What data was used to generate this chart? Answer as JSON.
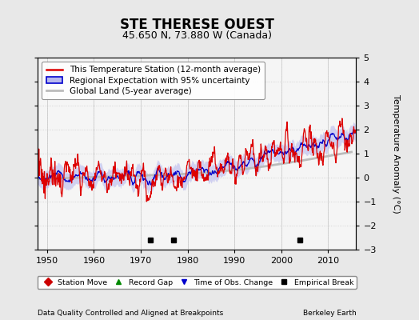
{
  "title": "STE THERESE OUEST",
  "subtitle": "45.650 N, 73.880 W (Canada)",
  "ylabel": "Temperature Anomaly (°C)",
  "xlabel_left": "Data Quality Controlled and Aligned at Breakpoints",
  "xlabel_right": "Berkeley Earth",
  "ylim": [
    -3,
    5
  ],
  "xlim": [
    1948,
    2016
  ],
  "yticks": [
    -3,
    -2,
    -1,
    0,
    1,
    2,
    3,
    4,
    5
  ],
  "xticks": [
    1950,
    1960,
    1970,
    1980,
    1990,
    2000,
    2010
  ],
  "bg_color": "#e8e8e8",
  "plot_bg_color": "#f5f5f5",
  "empirical_breaks": [
    1972,
    1977,
    2004
  ],
  "red_color": "#dd0000",
  "blue_color": "#0000cc",
  "blue_fill_color": "#b8b8ee",
  "gray_color": "#bbbbbb",
  "legend_fontsize": 7.5,
  "title_fontsize": 12,
  "subtitle_fontsize": 9
}
